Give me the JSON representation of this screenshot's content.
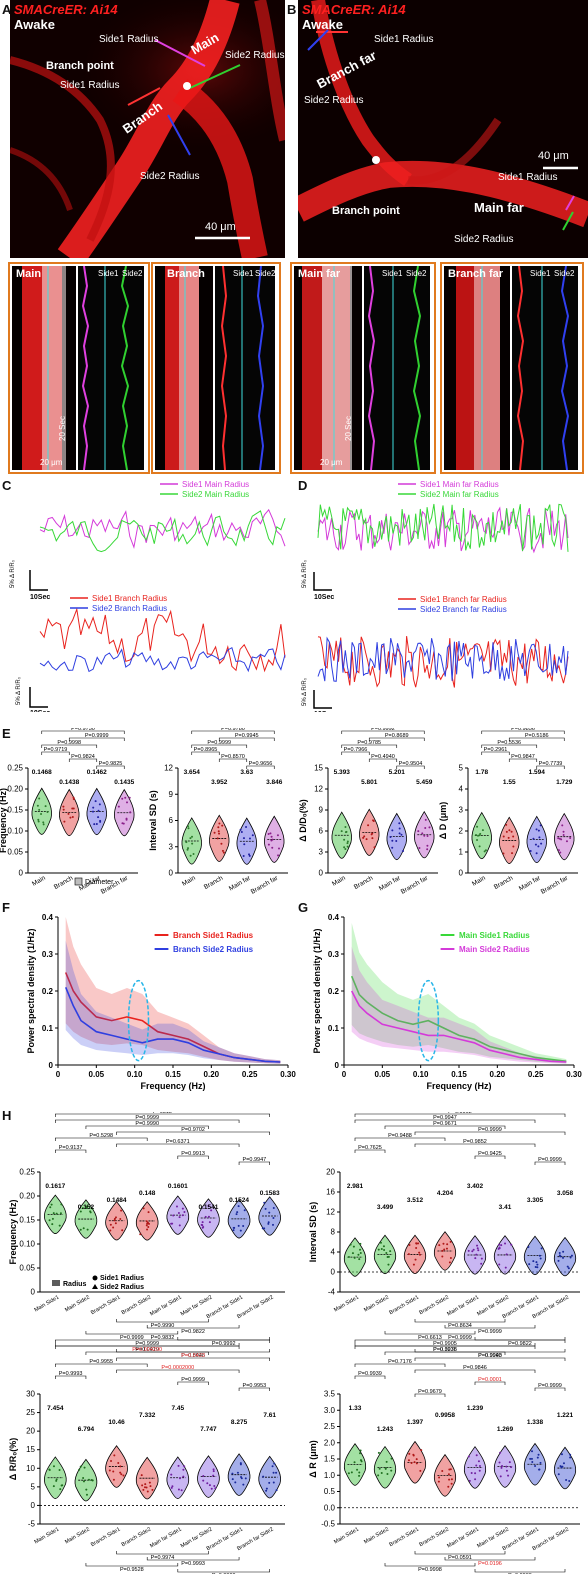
{
  "panels": {
    "A": "A",
    "B": "B",
    "C": "C",
    "D": "D",
    "E": "E",
    "F": "F",
    "G": "G",
    "H": "H"
  },
  "micro": {
    "title": "SMACreER: Ai14",
    "awake": "Awake",
    "a_labels": {
      "main": "Main",
      "branch": "Branch",
      "branch_point": "Branch point",
      "side1": "Side1 Radius",
      "side1b": "Side1 Radius",
      "side2": "Side2 Radius",
      "side2b": "Side2 Radius",
      "scale": "40 μm"
    },
    "b_labels": {
      "branch_far": "Branch far",
      "main_far": "Main far",
      "branch_point": "Branch point",
      "side1": "Side1 Radius",
      "side1b": "Side1 Radius",
      "side2": "Side2 Radius",
      "side2b": "Side2 Radius",
      "scale": "40 μm"
    }
  },
  "kymo": {
    "main": "Main",
    "branch": "Branch",
    "main_far": "Main far",
    "branch_far": "Branch far",
    "side1": "Side1",
    "side2": "Side2",
    "time": "20 Sec",
    "space": "20 μm"
  },
  "traces": {
    "c_top_legend": [
      "Side1 Main Radius",
      "Side2 Main Radius"
    ],
    "c_bot_legend": [
      "Side1 Branch Radius",
      "Side2 Branch Radius"
    ],
    "d_top_legend": [
      "Side1 Main far Radius",
      "Side2 Main far Radius"
    ],
    "d_bot_legend": [
      "Side1 Branch far Radius",
      "Side2 Branch far Radius"
    ],
    "scale_y": "5% Δ R/R₀",
    "scale_x": "10Sec"
  },
  "colors": {
    "magenta": "#d43ad9",
    "green": "#38d838",
    "red": "#e8231e",
    "blue": "#2f3fe0",
    "orange": "#e07a1f"
  },
  "chart_data": [
    {
      "type": "violin",
      "panel": "E",
      "ylabel": "Frequency (Hz)",
      "categories": [
        "Main",
        "Branch",
        "Main far",
        "Branch far"
      ],
      "values": [
        0.1468,
        0.1438,
        0.1462,
        0.1435
      ],
      "ylim": [
        0.0,
        0.25
      ],
      "yticks": [
        "0",
        "0.05",
        "0.10",
        "0.15",
        "0.20",
        "0.25"
      ],
      "legend": "Diameter",
      "pvalues": [
        "P=0.9730",
        "P=0.9999",
        "P=0.9998",
        "P=0.9719",
        "P=0.9824",
        "P=0.9825"
      ]
    },
    {
      "type": "violin",
      "panel": "E",
      "ylabel": "Interval SD (s)",
      "categories": [
        "Main",
        "Branch",
        "Main far",
        "Branch far"
      ],
      "values": [
        3.654,
        3.952,
        3.63,
        3.846
      ],
      "ylim": [
        0,
        12
      ],
      "yticks": [
        "0",
        "3",
        "6",
        "9",
        "12"
      ],
      "pvalues": [
        "P=0.9780",
        "P=0.9945",
        "P=0.9999",
        "P=0.8965",
        "P=0.8570",
        "P=0.9656"
      ]
    },
    {
      "type": "violin",
      "panel": "E",
      "ylabel": "Δ D/D₀(%)",
      "categories": [
        "Main",
        "Branch",
        "Main far",
        "Branch far"
      ],
      "values": [
        5.393,
        5.801,
        5.201,
        5.459
      ],
      "ylim": [
        0,
        15
      ],
      "yticks": [
        "0",
        "3",
        "6",
        "9",
        "12",
        "15"
      ],
      "pvalues": [
        "P=0.9992",
        "P=0.8689",
        "P=0.9785",
        "P=0.7966",
        "P=0.4940",
        "P=0.9504"
      ]
    },
    {
      "type": "violin",
      "panel": "E",
      "ylabel": "Δ D (μm)",
      "categories": [
        "Main",
        "Branch",
        "Main far",
        "Branch far"
      ],
      "values": [
        1.78,
        1.55,
        1.594,
        1.729
      ],
      "ylim": [
        0,
        5
      ],
      "yticks": [
        "0",
        "1",
        "2",
        "3",
        "4",
        "5"
      ],
      "pvalues": [
        "P=0.9856",
        "P=0.5186",
        "P=0.5536",
        "P=0.2961",
        "P=0.9847",
        "P=0.7739"
      ]
    },
    {
      "type": "line",
      "panel": "F",
      "ylabel": "Power spectral density (1/Hz)",
      "xlabel": "Frequency (Hz)",
      "xlim": [
        0,
        0.3
      ],
      "ylim": [
        0,
        0.4
      ],
      "xticks": [
        "0",
        "0.05",
        "0.10",
        "0.15",
        "0.20",
        "0.25",
        "0.30"
      ],
      "yticks": [
        "0",
        "0.1",
        "0.2",
        "0.3",
        "0.4"
      ],
      "x": [
        0.01,
        0.02,
        0.03,
        0.05,
        0.07,
        0.09,
        0.11,
        0.13,
        0.15,
        0.17,
        0.19,
        0.21,
        0.23,
        0.25,
        0.27,
        0.29
      ],
      "series": [
        {
          "name": "Branch Side1 Radius",
          "values": [
            0.25,
            0.2,
            0.17,
            0.13,
            0.12,
            0.13,
            0.12,
            0.09,
            0.08,
            0.07,
            0.05,
            0.03,
            0.02,
            0.015,
            0.01,
            0.008
          ]
        },
        {
          "name": "Branch Side2 Radius",
          "values": [
            0.21,
            0.16,
            0.12,
            0.09,
            0.08,
            0.07,
            0.06,
            0.07,
            0.07,
            0.06,
            0.04,
            0.03,
            0.02,
            0.015,
            0.01,
            0.008
          ]
        }
      ]
    },
    {
      "type": "line",
      "panel": "G",
      "ylabel": "Power spectral density (1/Hz)",
      "xlabel": "Frequency (Hz)",
      "xlim": [
        0,
        0.3
      ],
      "ylim": [
        0,
        0.4
      ],
      "xticks": [
        "0",
        "0.05",
        "0.10",
        "0.15",
        "0.20",
        "0.25",
        "0.30"
      ],
      "yticks": [
        "0",
        "0.1",
        "0.2",
        "0.3",
        "0.4"
      ],
      "x": [
        0.01,
        0.02,
        0.03,
        0.05,
        0.07,
        0.09,
        0.11,
        0.13,
        0.15,
        0.17,
        0.19,
        0.21,
        0.23,
        0.25,
        0.27,
        0.29
      ],
      "series": [
        {
          "name": "Main Side1 Radius",
          "values": [
            0.24,
            0.19,
            0.17,
            0.14,
            0.12,
            0.11,
            0.12,
            0.1,
            0.08,
            0.07,
            0.05,
            0.04,
            0.03,
            0.02,
            0.015,
            0.01
          ]
        },
        {
          "name": "Main Side2 Radius",
          "values": [
            0.2,
            0.16,
            0.14,
            0.11,
            0.1,
            0.09,
            0.08,
            0.08,
            0.07,
            0.06,
            0.04,
            0.03,
            0.02,
            0.015,
            0.01,
            0.008
          ]
        }
      ]
    },
    {
      "type": "violin",
      "panel": "H",
      "ylabel": "Frequency (Hz)",
      "categories": [
        "Main Side1",
        "Main Side2",
        "Branch Side1",
        "Branch Side2",
        "Main far Side1",
        "Main far Side2",
        "Branch far Side1",
        "Branch far Side2"
      ],
      "values": [
        0.1617,
        0.152,
        0.1484,
        0.148,
        0.1601,
        0.1541,
        0.1524,
        0.1583
      ],
      "ylim": [
        0.0,
        0.25
      ],
      "yticks": [
        "0",
        "0.05",
        "0.10",
        "0.15",
        "0.20",
        "0.25"
      ],
      "legend": [
        "Radius",
        "Side1 Radius",
        "Side2 Radius"
      ],
      "pvalues_top": [
        "P=9312",
        "P=0.9999",
        "P=0.9990",
        "P=0.9702",
        "P=0.5298",
        "P=0.6371",
        "P=0.9137",
        "P=0.9913",
        "P=0.9947"
      ],
      "pvalues_bottom": [
        "P=0.9990",
        "P=0.9822",
        "P=0.9999",
        "P=0.9992",
        "P=0.9919",
        "P=0.8048"
      ]
    },
    {
      "type": "violin",
      "panel": "H",
      "ylabel": "Interval SD (s)",
      "categories": [
        "Main Side1",
        "Main Side2",
        "Branch Side1",
        "Branch Side2",
        "Main far Side1",
        "Main far Side2",
        "Branch far Side1",
        "Branch far Side2"
      ],
      "values": [
        2.981,
        3.499,
        3.512,
        4.204,
        3.402,
        3.41,
        3.305,
        3.058
      ],
      "ylim": [
        -4,
        20
      ],
      "yticks": [
        "-4",
        "0",
        "4",
        "8",
        "12",
        "16",
        "20"
      ],
      "pvalues_top": [
        "P=0.9992",
        "P=0.9947",
        "P=0.9671",
        "P=0.9999",
        "P=0.9488",
        "P=0.9852",
        "P=0.7625",
        "P=0.9425",
        "P=0.9999"
      ],
      "pvalues_bottom": [
        "P=0.8634",
        "P=0.9999",
        "P=0.6613",
        "P=0.9822",
        "P=0.3236",
        "P=0.9943"
      ]
    },
    {
      "type": "violin",
      "panel": "H",
      "ylabel": "Δ R/R₀(%)",
      "categories": [
        "Main Side1",
        "Main Side2",
        "Branch Side1",
        "Branch Side2",
        "Main far Side1",
        "Main far Side2",
        "Branch far Side1",
        "Branch far Side2"
      ],
      "values": [
        7.454,
        6.794,
        10.46,
        7.332,
        7.45,
        7.747,
        8.275,
        7.61
      ],
      "ylim": [
        -5,
        30
      ],
      "yticks": [
        "-5",
        "0",
        "5",
        "10",
        "15",
        "20",
        "25",
        "30"
      ],
      "pvalues_top": [
        "P=0.9832",
        "P=0.9999",
        "P=0.004200",
        "P=0.0423",
        "P=0.9955",
        "P=0.0002000",
        "P=0.9993",
        "P=0.9999",
        "P=0.9953"
      ],
      "pvalues_bottom": [
        "P=0.9974",
        "P=0.9993",
        "P=0.9528",
        "P=0.9999",
        "P=0.9838"
      ]
    },
    {
      "type": "violin",
      "panel": "H",
      "ylabel": "Δ R (μm)",
      "categories": [
        "Main Side1",
        "Main Side2",
        "Branch Side1",
        "Branch Side2",
        "Main far Side1",
        "Main far Side2",
        "Branch far Side1",
        "Branch far Side2"
      ],
      "values": [
        1.33,
        1.243,
        1.397,
        0.9958,
        1.239,
        1.269,
        1.338,
        1.221
      ],
      "ylim": [
        -0.5,
        3.5
      ],
      "yticks": [
        "-0.5",
        "0.0",
        "0.5",
        "1.0",
        "1.5",
        "2.0",
        "2.5",
        "3.0",
        "3.5"
      ],
      "pvalues_top": [
        "P=0.9999",
        "P=0.9905",
        "P=0.9978",
        "P=0.9990",
        "P=0.7176",
        "P=0.9846",
        "P=0.9939",
        "P=0.0001",
        "P=0.9999",
        "P=0.9679"
      ],
      "pvalues_bottom": [
        "P=0.0591",
        "P=0.0196",
        "P=0.9998",
        "P=0.9999",
        "P=0.0993",
        "P=0.9999"
      ]
    }
  ],
  "freq_label": "Frequency (Hz)",
  "psd_label": "Power spectral density (1/Hz)"
}
